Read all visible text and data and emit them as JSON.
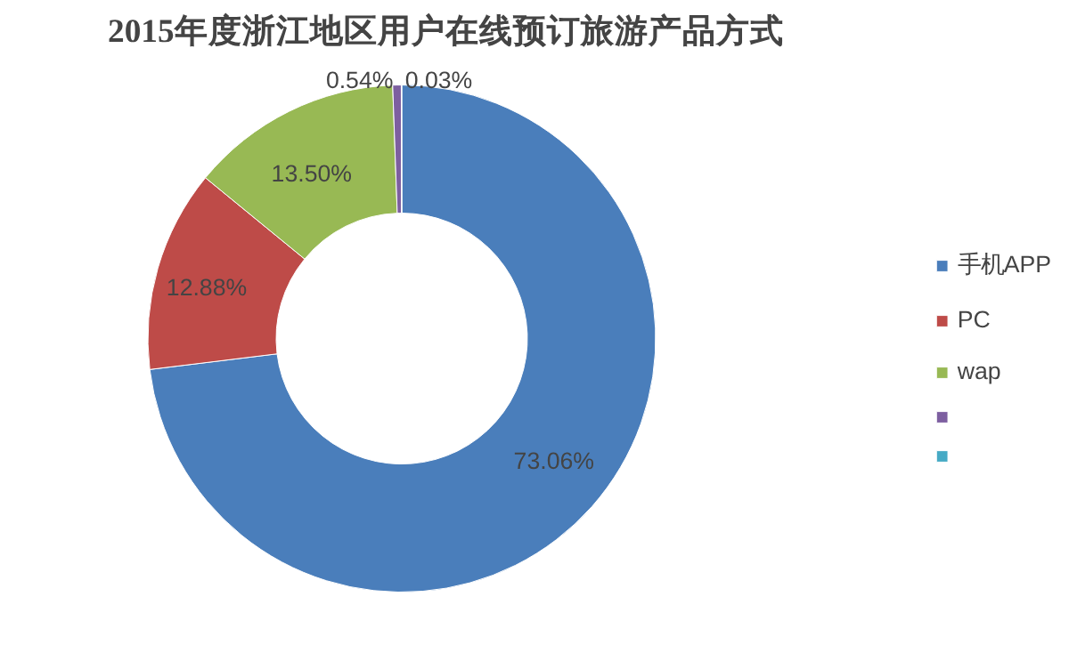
{
  "chart_data": {
    "type": "donut",
    "title": "2015年度浙江地区用户在线预订旅游产品方式",
    "categories": [
      "手机APP",
      "PC",
      "wap",
      null,
      null
    ],
    "values": [
      73.06,
      12.88,
      13.5,
      0.54,
      0.03
    ],
    "colors": [
      "#4a7ebb",
      "#be4b48",
      "#98b954",
      "#7d5fa0",
      "#46aac5"
    ],
    "value_labels": [
      "73.06%",
      "12.88%",
      "13.50%",
      "0.54%",
      "0.03%"
    ],
    "legend": "right"
  }
}
